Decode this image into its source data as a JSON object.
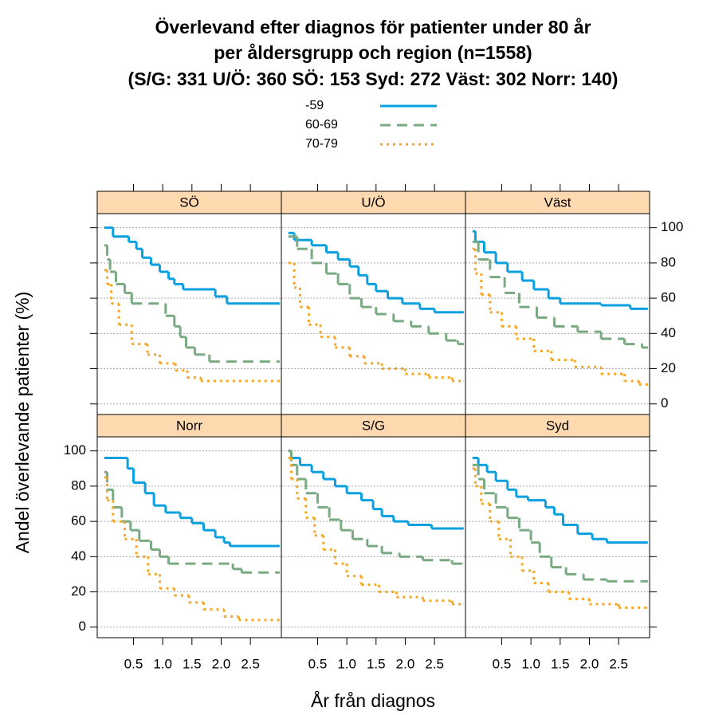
{
  "chart_data": {
    "type": "line",
    "title": [
      "Överlevand efter diagnos för patienter under 80 år",
      "per åldersgrupp och region (n=1558)",
      "(S/G: 331 U/Ö: 360 SÖ: 153 Syd: 272 Väst: 302 Norr: 140)"
    ],
    "x_label": "År från diagnos",
    "y_label": "Andel överlevande patienter (%)",
    "xlim": [
      -0.12,
      3.03
    ],
    "xticks": [
      0.5,
      {
        "value": 1,
        "label": "1.0"
      },
      1.5,
      {
        "value": 2,
        "label": "2.0"
      },
      2.5
    ],
    "ylim": [
      -6,
      108
    ],
    "yticks": [
      0,
      20,
      40,
      60,
      80,
      100
    ],
    "grid": true,
    "step": true,
    "series": [
      {
        "name": "-59",
        "color": "#0aa0e0",
        "dash": "solid"
      },
      {
        "name": "60-69",
        "color": "#7aaa82",
        "dash": "dashed"
      },
      {
        "name": "70-79",
        "color": "#f5a623",
        "dash": "dotted"
      }
    ],
    "panels": [
      {
        "title": "SÖ",
        "series": [
          {
            "x": [
              0,
              0.15,
              0.42,
              0.55,
              0.65,
              0.8,
              0.95,
              1.1,
              1.2,
              1.35,
              1.9,
              2.1,
              3.0
            ],
            "values": [
              100,
              95,
              92,
              88,
              83,
              79,
              75,
              71,
              68,
              65,
              61,
              57,
              57
            ]
          },
          {
            "x": [
              0,
              0.05,
              0.1,
              0.2,
              0.35,
              0.47,
              1.05,
              1.2,
              1.3,
              1.4,
              1.55,
              1.8,
              3.0
            ],
            "values": [
              90,
              82,
              75,
              68,
              63,
              57,
              50,
              44,
              38,
              32,
              28,
              24,
              24
            ]
          },
          {
            "x": [
              0,
              0.05,
              0.12,
              0.25,
              0.47,
              0.74,
              0.95,
              1.22,
              1.42,
              1.65,
              3.0
            ],
            "values": [
              76,
              68,
              57,
              45,
              34,
              28,
              23,
              19,
              15,
              13,
              13
            ]
          }
        ]
      },
      {
        "title": "U/Ö",
        "series": [
          {
            "x": [
              0,
              0.1,
              0.4,
              0.65,
              0.85,
              1.05,
              1.2,
              1.35,
              1.5,
              1.7,
              1.95,
              2.25,
              2.5,
              3.0
            ],
            "values": [
              97,
              93,
              90,
              86,
              82,
              78,
              73,
              68,
              64,
              60,
              57,
              54,
              52,
              52
            ]
          },
          {
            "x": [
              0,
              0.15,
              0.4,
              0.65,
              0.85,
              1.05,
              1.25,
              1.5,
              1.8,
              2.1,
              2.4,
              2.7,
              2.9,
              3.0
            ],
            "values": [
              95,
              88,
              80,
              74,
              68,
              60,
              55,
              51,
              47,
              44,
              40,
              36,
              34,
              34
            ]
          },
          {
            "x": [
              0,
              0.1,
              0.2,
              0.35,
              0.55,
              0.8,
              1.05,
              1.3,
              1.6,
              2.0,
              2.4,
              2.8,
              3.0
            ],
            "values": [
              80,
              66,
              55,
              45,
              38,
              32,
              27,
              23,
              20,
              17,
              15,
              13,
              13
            ]
          }
        ]
      },
      {
        "title": "Väst",
        "series": [
          {
            "x": [
              0,
              0.05,
              0.2,
              0.4,
              0.6,
              0.85,
              1.05,
              1.3,
              1.5,
              2.2,
              2.7,
              3.0
            ],
            "values": [
              98,
              92,
              86,
              80,
              75,
              70,
              65,
              60,
              57,
              56,
              54,
              54
            ]
          },
          {
            "x": [
              0,
              0.1,
              0.3,
              0.55,
              0.8,
              1.1,
              1.4,
              1.8,
              2.2,
              2.6,
              2.9,
              3.0
            ],
            "values": [
              92,
              82,
              72,
              63,
              55,
              49,
              44,
              41,
              37,
              34,
              32,
              32
            ]
          },
          {
            "x": [
              0,
              0.05,
              0.15,
              0.3,
              0.5,
              0.75,
              1.05,
              1.35,
              1.75,
              2.2,
              2.6,
              2.85,
              3.0
            ],
            "values": [
              88,
              74,
              62,
              52,
              44,
              37,
              30,
              25,
              21,
              17,
              13,
              11,
              11
            ]
          }
        ]
      },
      {
        "title": "Norr",
        "series": [
          {
            "x": [
              0,
              0.4,
              0.5,
              0.7,
              0.85,
              1.05,
              1.3,
              1.5,
              1.7,
              1.9,
              2.05,
              2.15,
              3.0
            ],
            "values": [
              96,
              90,
              82,
              76,
              69,
              65,
              62,
              59,
              55,
              51,
              48,
              46,
              46
            ]
          },
          {
            "x": [
              0,
              0.05,
              0.15,
              0.3,
              0.45,
              0.6,
              0.8,
              0.95,
              1.1,
              2.2,
              2.35,
              3.0
            ],
            "values": [
              88,
              78,
              68,
              60,
              55,
              49,
              44,
              40,
              36,
              33,
              31,
              31
            ]
          },
          {
            "x": [
              0,
              0.05,
              0.15,
              0.35,
              0.55,
              0.75,
              0.95,
              1.2,
              1.45,
              1.7,
              2.05,
              2.3,
              3.0
            ],
            "values": [
              85,
              72,
              60,
              50,
              40,
              30,
              22,
              18,
              14,
              10,
              6,
              4,
              4
            ]
          }
        ]
      },
      {
        "title": "S/G",
        "series": [
          {
            "x": [
              0,
              0.05,
              0.2,
              0.4,
              0.6,
              0.8,
              1.0,
              1.25,
              1.45,
              1.6,
              1.8,
              2.05,
              2.45,
              3.0
            ],
            "values": [
              100,
              96,
              92,
              88,
              84,
              80,
              76,
              72,
              67,
              63,
              60,
              58,
              56,
              56
            ]
          },
          {
            "x": [
              0,
              0.05,
              0.15,
              0.3,
              0.5,
              0.7,
              0.9,
              1.1,
              1.35,
              1.6,
              1.9,
              2.3,
              2.8,
              3.0
            ],
            "values": [
              100,
              92,
              84,
              76,
              68,
              61,
              55,
              50,
              46,
              42,
              40,
              38,
              36,
              36
            ]
          },
          {
            "x": [
              0,
              0.05,
              0.15,
              0.3,
              0.45,
              0.6,
              0.8,
              1.0,
              1.25,
              1.55,
              1.85,
              2.3,
              2.8,
              3.0
            ],
            "values": [
              96,
              84,
              73,
              62,
              52,
              44,
              36,
              29,
              24,
              20,
              17,
              15,
              13,
              13
            ]
          }
        ]
      },
      {
        "title": "Syd",
        "series": [
          {
            "x": [
              0,
              0.1,
              0.25,
              0.4,
              0.6,
              0.75,
              0.95,
              1.25,
              1.4,
              1.55,
              1.8,
              2.05,
              2.3,
              3.0
            ],
            "values": [
              96,
              92,
              88,
              83,
              78,
              74,
              72,
              68,
              64,
              58,
              53,
              50,
              48,
              48
            ]
          },
          {
            "x": [
              0,
              0.1,
              0.2,
              0.4,
              0.6,
              0.8,
              1.0,
              1.15,
              1.35,
              1.6,
              1.9,
              2.3,
              3.0
            ],
            "values": [
              92,
              84,
              76,
              68,
              62,
              55,
              48,
              40,
              34,
              30,
              27,
              26,
              26
            ]
          },
          {
            "x": [
              0,
              0.05,
              0.15,
              0.3,
              0.45,
              0.65,
              0.85,
              1.05,
              1.3,
              1.65,
              2.0,
              2.5,
              3.0
            ],
            "values": [
              90,
              80,
              70,
              60,
              50,
              40,
              32,
              25,
              20,
              16,
              13,
              11,
              11
            ]
          }
        ]
      }
    ]
  }
}
